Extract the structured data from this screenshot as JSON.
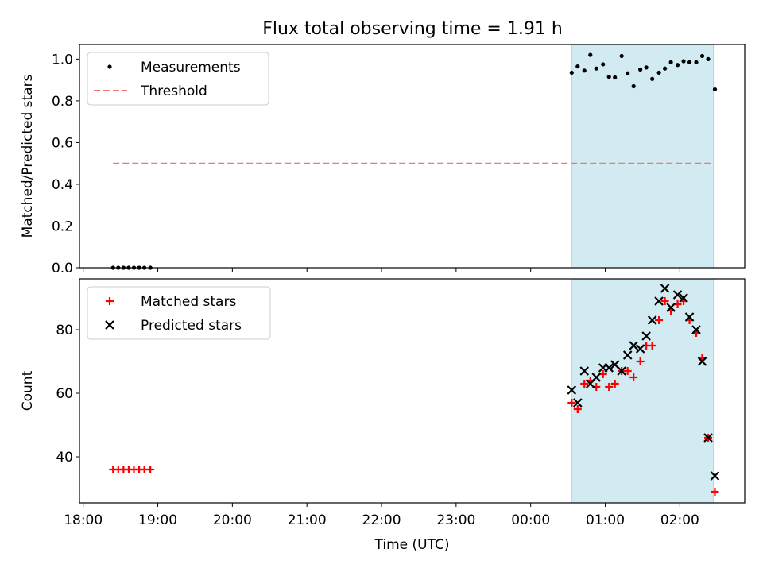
{
  "title": "Flux total observing time = 1.91 h",
  "colors": {
    "threshold": "#f07878",
    "matched": "#ff0000",
    "predicted": "#000000",
    "shade": "#add8e6",
    "axis": "#000000"
  },
  "chart_data": [
    {
      "type": "scatter",
      "ylabel": "Matched/Predicted stars",
      "xlim": [
        17.95,
        26.87
      ],
      "ylim": [
        0,
        1.07
      ],
      "yticks": [
        0.0,
        0.2,
        0.4,
        0.6,
        0.8,
        1.0
      ],
      "ytick_labels": [
        "0.0",
        "0.2",
        "0.4",
        "0.6",
        "0.8",
        "1.0"
      ],
      "shaded_span": [
        24.55,
        26.45
      ],
      "legend": {
        "position": "upper-left",
        "entries": [
          "Measurements",
          "Threshold"
        ]
      },
      "threshold": {
        "name": "Threshold",
        "y": 0.5,
        "x": [
          18.4,
          26.45
        ]
      },
      "series": [
        {
          "name": "Measurements",
          "points": [
            [
              18.4,
              0
            ],
            [
              18.47,
              0
            ],
            [
              18.54,
              0
            ],
            [
              18.61,
              0
            ],
            [
              18.68,
              0
            ],
            [
              18.75,
              0
            ],
            [
              18.82,
              0
            ],
            [
              18.9,
              0
            ],
            [
              24.55,
              0.935
            ],
            [
              24.63,
              0.965
            ],
            [
              24.72,
              0.945
            ],
            [
              24.8,
              1.02
            ],
            [
              24.88,
              0.955
            ],
            [
              24.97,
              0.975
            ],
            [
              25.05,
              0.915
            ],
            [
              25.13,
              0.912
            ],
            [
              25.22,
              1.015
            ],
            [
              25.3,
              0.932
            ],
            [
              25.38,
              0.87
            ],
            [
              25.47,
              0.95
            ],
            [
              25.55,
              0.96
            ],
            [
              25.63,
              0.905
            ],
            [
              25.72,
              0.935
            ],
            [
              25.8,
              0.955
            ],
            [
              25.88,
              0.985
            ],
            [
              25.97,
              0.972
            ],
            [
              26.05,
              0.99
            ],
            [
              26.13,
              0.985
            ],
            [
              26.22,
              0.985
            ],
            [
              26.3,
              1.015
            ],
            [
              26.38,
              1.0
            ],
            [
              26.47,
              0.855
            ]
          ]
        }
      ]
    },
    {
      "type": "scatter",
      "xlabel": "Time (UTC)",
      "ylabel": "Count",
      "xlim": [
        17.95,
        26.87
      ],
      "ylim": [
        25.5,
        96
      ],
      "yticks": [
        40,
        60,
        80
      ],
      "ytick_labels": [
        "40",
        "60",
        "80"
      ],
      "xticks": [
        18,
        19,
        20,
        21,
        22,
        23,
        24,
        25,
        26
      ],
      "xtick_labels": [
        "18:00",
        "19:00",
        "20:00",
        "21:00",
        "22:00",
        "23:00",
        "00:00",
        "01:00",
        "02:00"
      ],
      "shaded_span": [
        24.55,
        26.45
      ],
      "legend": {
        "position": "upper-left",
        "entries": [
          "Matched stars",
          "Predicted stars"
        ]
      },
      "series": [
        {
          "name": "Matched stars",
          "marker": "plus",
          "points": [
            [
              18.4,
              36
            ],
            [
              18.47,
              36
            ],
            [
              18.54,
              36
            ],
            [
              18.61,
              36
            ],
            [
              18.68,
              36
            ],
            [
              18.75,
              36
            ],
            [
              18.82,
              36
            ],
            [
              18.9,
              36
            ],
            [
              24.55,
              57
            ],
            [
              24.63,
              55
            ],
            [
              24.72,
              63
            ],
            [
              24.8,
              64
            ],
            [
              24.88,
              62
            ],
            [
              24.97,
              66
            ],
            [
              25.05,
              62
            ],
            [
              25.13,
              63
            ],
            [
              25.22,
              67
            ],
            [
              25.3,
              67
            ],
            [
              25.38,
              65
            ],
            [
              25.47,
              70
            ],
            [
              25.55,
              75
            ],
            [
              25.63,
              75
            ],
            [
              25.72,
              83
            ],
            [
              25.8,
              89
            ],
            [
              25.88,
              86
            ],
            [
              25.97,
              88
            ],
            [
              26.05,
              89
            ],
            [
              26.13,
              83
            ],
            [
              26.22,
              79
            ],
            [
              26.3,
              71
            ],
            [
              26.38,
              46
            ],
            [
              26.47,
              29
            ]
          ]
        },
        {
          "name": "Predicted stars",
          "marker": "x",
          "points": [
            [
              24.55,
              61
            ],
            [
              24.63,
              57
            ],
            [
              24.72,
              67
            ],
            [
              24.8,
              63
            ],
            [
              24.88,
              65
            ],
            [
              24.97,
              68
            ],
            [
              25.05,
              68
            ],
            [
              25.13,
              69
            ],
            [
              25.22,
              67
            ],
            [
              25.3,
              72
            ],
            [
              25.38,
              75
            ],
            [
              25.47,
              74
            ],
            [
              25.55,
              78
            ],
            [
              25.63,
              83
            ],
            [
              25.72,
              89
            ],
            [
              25.8,
              93
            ],
            [
              25.88,
              87
            ],
            [
              25.97,
              91
            ],
            [
              26.05,
              90
            ],
            [
              26.13,
              84
            ],
            [
              26.22,
              80
            ],
            [
              26.3,
              70
            ],
            [
              26.38,
              46
            ],
            [
              26.47,
              34
            ]
          ]
        }
      ]
    }
  ]
}
